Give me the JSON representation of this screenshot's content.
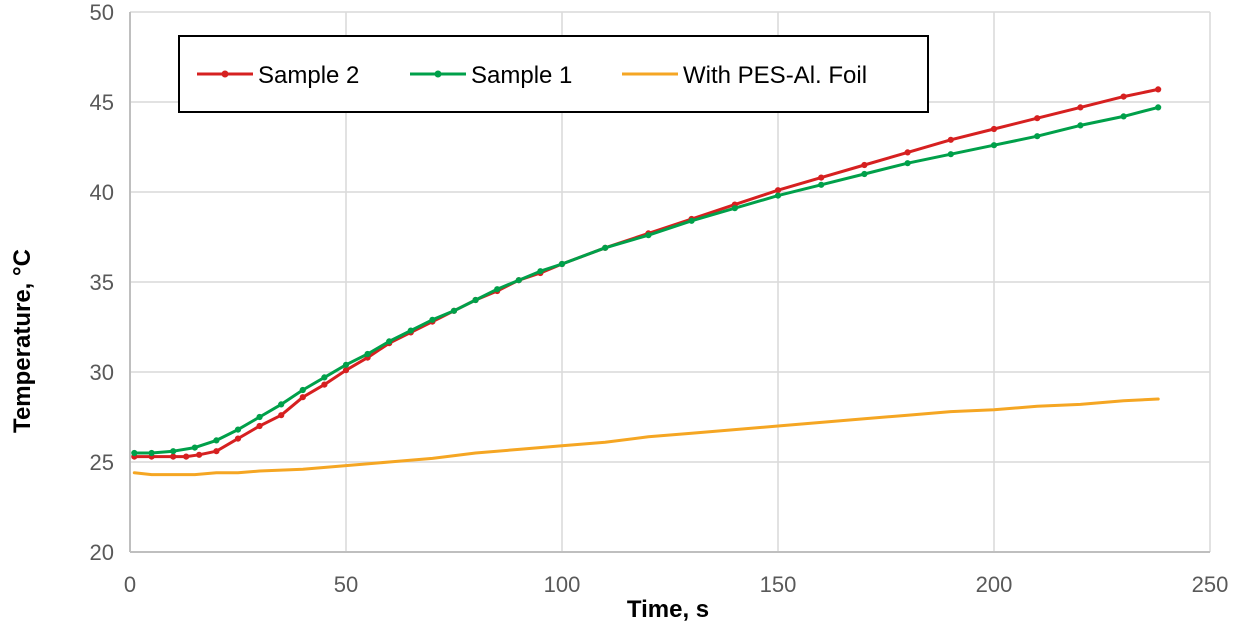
{
  "chart_data": {
    "type": "line",
    "title": "",
    "xlabel": "Time, s",
    "ylabel": "Temperature, °C",
    "xlim": [
      0,
      250
    ],
    "ylim": [
      20,
      50
    ],
    "xticks": [
      0,
      50,
      100,
      150,
      200,
      250
    ],
    "yticks": [
      20,
      25,
      30,
      35,
      40,
      45,
      50
    ],
    "grid": true,
    "legend_position": "top-left, inside plot",
    "series": [
      {
        "name": "Sample 2",
        "color": "#d62020",
        "marker": "circle",
        "x": [
          1,
          5,
          10,
          13,
          16,
          20,
          25,
          30,
          35,
          40,
          45,
          50,
          55,
          60,
          65,
          70,
          75,
          80,
          85,
          90,
          95,
          100,
          110,
          120,
          130,
          140,
          150,
          160,
          170,
          180,
          190,
          200,
          210,
          220,
          230,
          238
        ],
        "y": [
          25.3,
          25.3,
          25.3,
          25.3,
          25.4,
          25.6,
          26.3,
          27.0,
          27.6,
          28.6,
          29.3,
          30.1,
          30.8,
          31.6,
          32.2,
          32.8,
          33.4,
          34.0,
          34.5,
          35.1,
          35.5,
          36.0,
          36.9,
          37.7,
          38.5,
          39.3,
          40.1,
          40.8,
          41.5,
          42.2,
          42.9,
          43.5,
          44.1,
          44.7,
          45.3,
          45.7
        ]
      },
      {
        "name": "Sample 1",
        "color": "#00a04a",
        "marker": "circle",
        "x": [
          1,
          5,
          10,
          15,
          20,
          25,
          30,
          35,
          40,
          45,
          50,
          55,
          60,
          65,
          70,
          75,
          80,
          85,
          90,
          95,
          100,
          110,
          120,
          130,
          140,
          150,
          160,
          170,
          180,
          190,
          200,
          210,
          220,
          230,
          238
        ],
        "y": [
          25.5,
          25.5,
          25.6,
          25.8,
          26.2,
          26.8,
          27.5,
          28.2,
          29.0,
          29.7,
          30.4,
          31.0,
          31.7,
          32.3,
          32.9,
          33.4,
          34.0,
          34.6,
          35.1,
          35.6,
          36.0,
          36.9,
          37.6,
          38.4,
          39.1,
          39.8,
          40.4,
          41.0,
          41.6,
          42.1,
          42.6,
          43.1,
          43.7,
          44.2,
          44.7
        ]
      },
      {
        "name": "With PES-Al. Foil",
        "color": "#f5a623",
        "marker": "none",
        "x": [
          1,
          5,
          10,
          15,
          20,
          25,
          30,
          40,
          50,
          60,
          70,
          80,
          90,
          100,
          110,
          120,
          130,
          140,
          150,
          160,
          170,
          180,
          190,
          200,
          210,
          220,
          230,
          238
        ],
        "y": [
          24.4,
          24.3,
          24.3,
          24.3,
          24.4,
          24.4,
          24.5,
          24.6,
          24.8,
          25.0,
          25.2,
          25.5,
          25.7,
          25.9,
          26.1,
          26.4,
          26.6,
          26.8,
          27.0,
          27.2,
          27.4,
          27.6,
          27.8,
          27.9,
          28.1,
          28.2,
          28.4,
          28.5
        ]
      }
    ]
  }
}
